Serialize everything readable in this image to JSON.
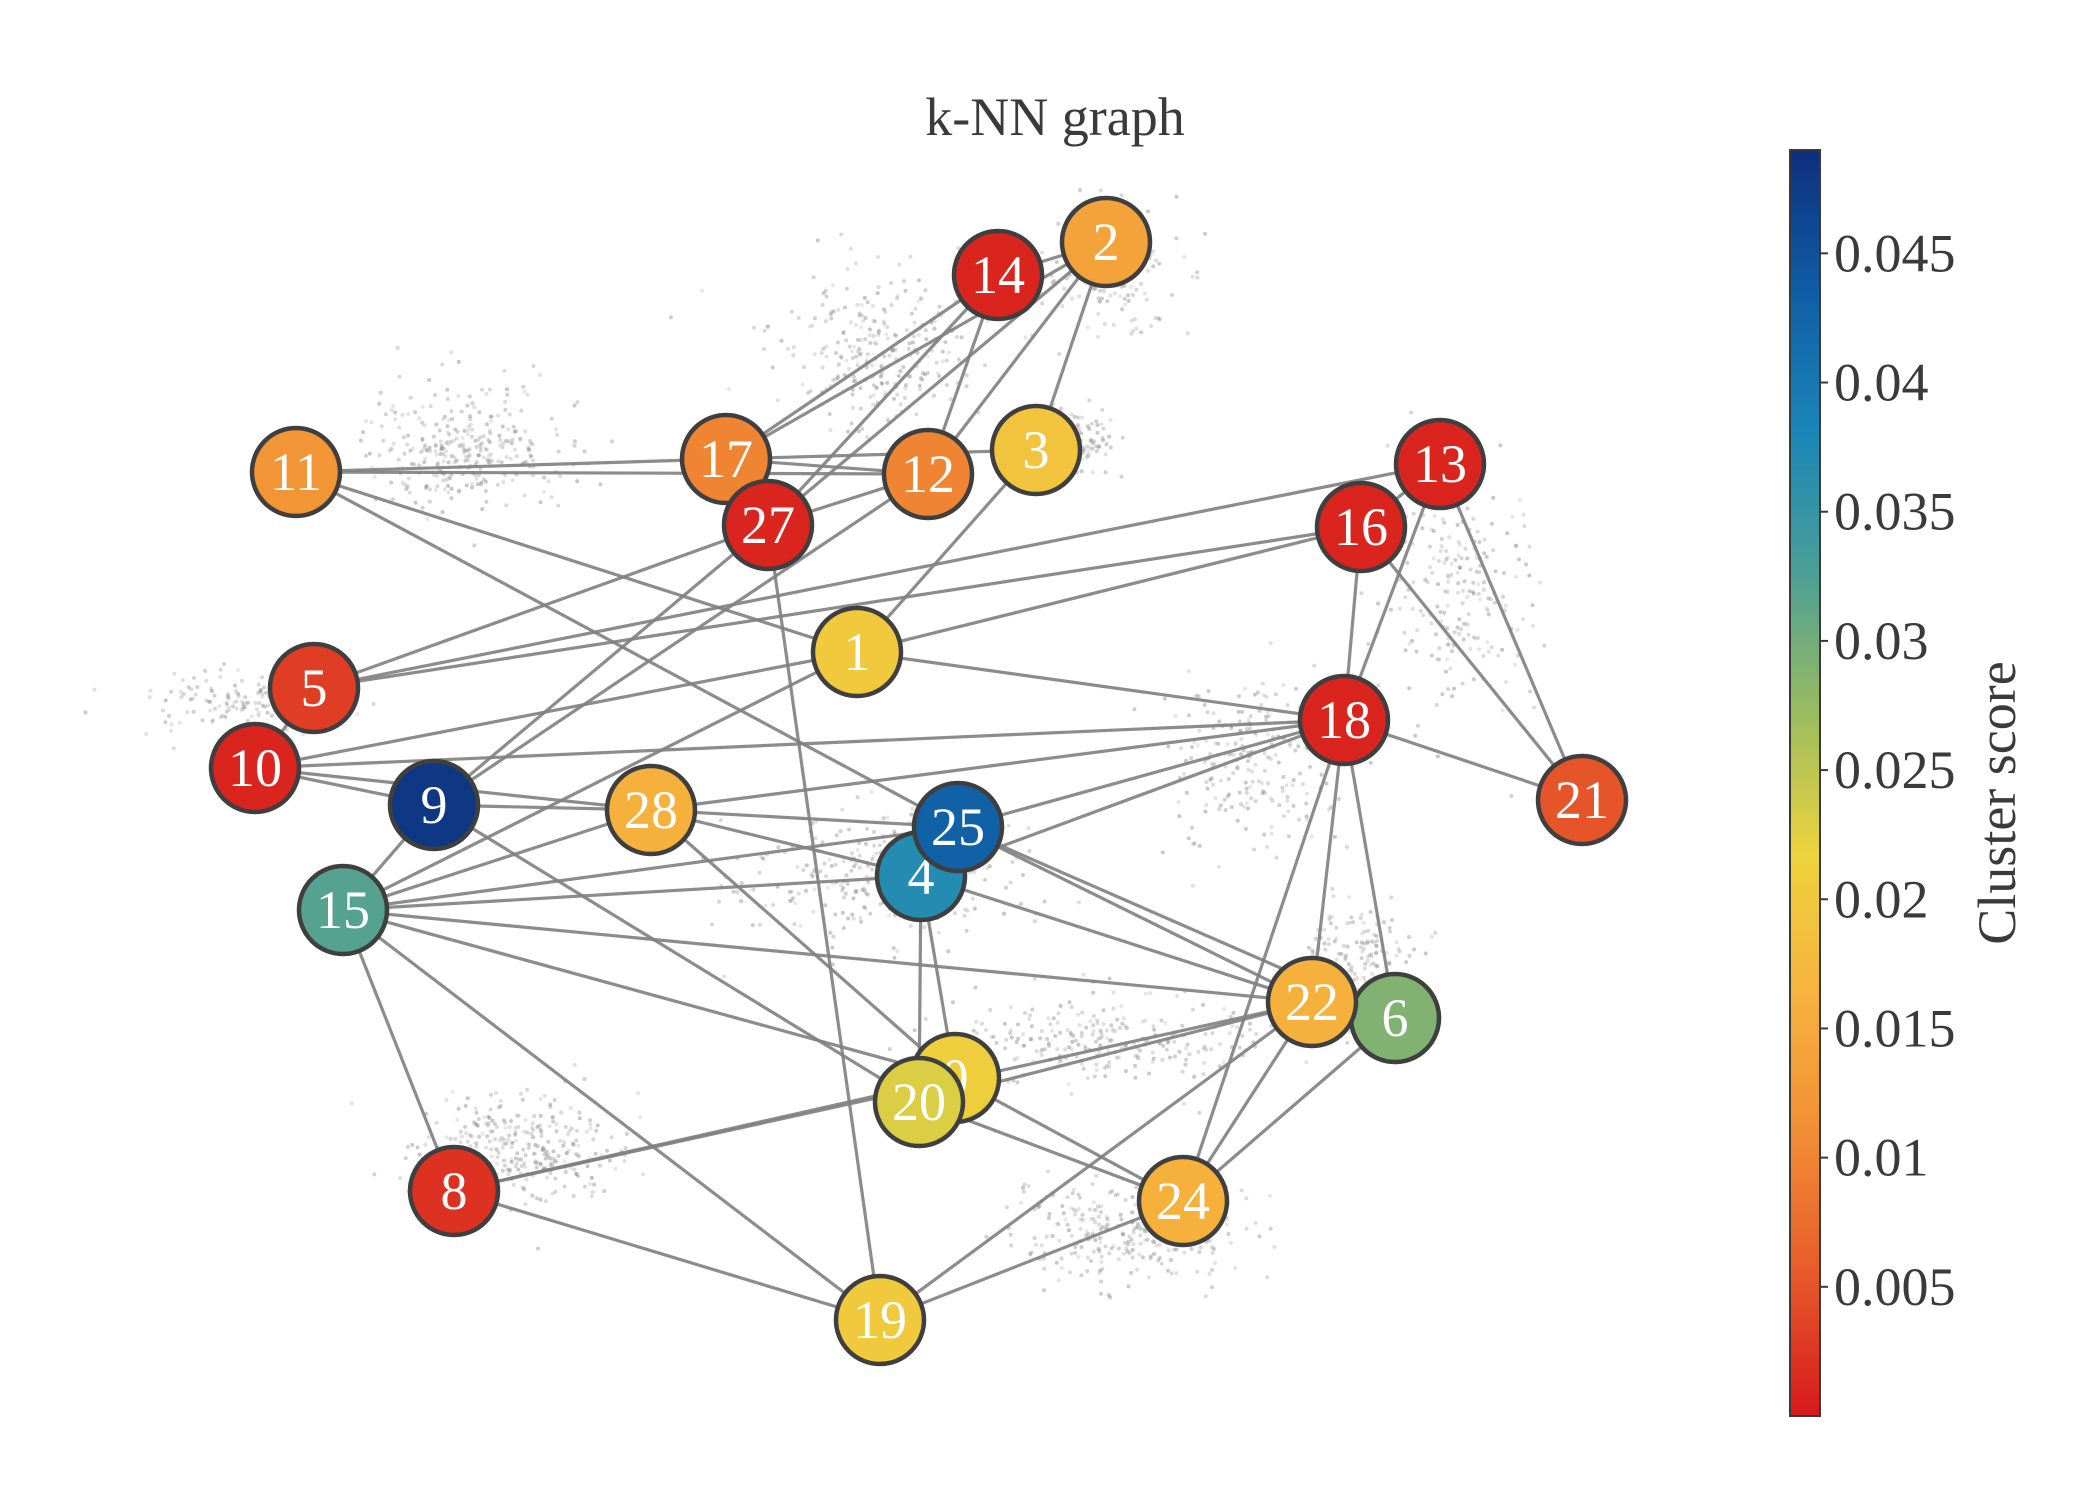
{
  "title": "k-NN graph",
  "colorbar": {
    "label": "Cluster score",
    "min": 0.0,
    "max": 0.049,
    "ticks": [
      "0.005",
      "0.01",
      "0.015",
      "0.02",
      "0.025",
      "0.03",
      "0.035",
      "0.04",
      "0.045"
    ],
    "colormap": [
      "#d7191c",
      "#e65a2a",
      "#f18d35",
      "#f6b33e",
      "#edd33c",
      "#9bbb60",
      "#4a9f96",
      "#1a86b8",
      "#105da5",
      "#0d2f7d"
    ]
  },
  "nodes": [
    {
      "id": "0",
      "score": 0.021
    },
    {
      "id": "1",
      "score": 0.02
    },
    {
      "id": "2",
      "score": 0.014
    },
    {
      "id": "3",
      "score": 0.019
    },
    {
      "id": "4",
      "score": 0.037
    },
    {
      "id": "5",
      "score": 0.003
    },
    {
      "id": "6",
      "score": 0.029
    },
    {
      "id": "8",
      "score": 0.002
    },
    {
      "id": "9",
      "score": 0.048
    },
    {
      "id": "10",
      "score": 0.001
    },
    {
      "id": "11",
      "score": 0.012
    },
    {
      "id": "12",
      "score": 0.01
    },
    {
      "id": "13",
      "score": 0.001
    },
    {
      "id": "14",
      "score": 0.001
    },
    {
      "id": "15",
      "score": 0.032
    },
    {
      "id": "16",
      "score": 0.001
    },
    {
      "id": "17",
      "score": 0.01
    },
    {
      "id": "18",
      "score": 0.001
    },
    {
      "id": "19",
      "score": 0.02
    },
    {
      "id": "20",
      "score": 0.023
    },
    {
      "id": "21",
      "score": 0.005
    },
    {
      "id": "22",
      "score": 0.016
    },
    {
      "id": "24",
      "score": 0.016
    },
    {
      "id": "25",
      "score": 0.043
    },
    {
      "id": "27",
      "score": 0.001
    },
    {
      "id": "28",
      "score": 0.016
    }
  ],
  "edges": [
    [
      "14",
      "2"
    ],
    [
      "14",
      "17"
    ],
    [
      "14",
      "12"
    ],
    [
      "14",
      "27"
    ],
    [
      "2",
      "17"
    ],
    [
      "2",
      "12"
    ],
    [
      "2",
      "3"
    ],
    [
      "2",
      "27"
    ],
    [
      "11",
      "17"
    ],
    [
      "11",
      "12"
    ],
    [
      "11",
      "1"
    ],
    [
      "11",
      "25"
    ],
    [
      "17",
      "12"
    ],
    [
      "17",
      "3"
    ],
    [
      "27",
      "12"
    ],
    [
      "27",
      "5"
    ],
    [
      "27",
      "9"
    ],
    [
      "27",
      "19"
    ],
    [
      "12",
      "9"
    ],
    [
      "3",
      "1"
    ],
    [
      "13",
      "16"
    ],
    [
      "13",
      "5"
    ],
    [
      "13",
      "18"
    ],
    [
      "13",
      "21"
    ],
    [
      "16",
      "5"
    ],
    [
      "16",
      "1"
    ],
    [
      "16",
      "18"
    ],
    [
      "16",
      "21"
    ],
    [
      "1",
      "10"
    ],
    [
      "1",
      "18"
    ],
    [
      "18",
      "10"
    ],
    [
      "18",
      "28"
    ],
    [
      "18",
      "25"
    ],
    [
      "18",
      "4"
    ],
    [
      "18",
      "21"
    ],
    [
      "18",
      "22"
    ],
    [
      "18",
      "6"
    ],
    [
      "18",
      "24"
    ],
    [
      "5",
      "10"
    ],
    [
      "10",
      "9"
    ],
    [
      "10",
      "28"
    ],
    [
      "9",
      "15"
    ],
    [
      "9",
      "28"
    ],
    [
      "9",
      "20"
    ],
    [
      "28",
      "15"
    ],
    [
      "28",
      "25"
    ],
    [
      "28",
      "4"
    ],
    [
      "28",
      "0"
    ],
    [
      "25",
      "15"
    ],
    [
      "25",
      "4"
    ],
    [
      "25",
      "22"
    ],
    [
      "25",
      "6"
    ],
    [
      "4",
      "15"
    ],
    [
      "4",
      "22"
    ],
    [
      "4",
      "0"
    ],
    [
      "4",
      "20"
    ],
    [
      "15",
      "22"
    ],
    [
      "15",
      "0"
    ],
    [
      "15",
      "8"
    ],
    [
      "15",
      "19"
    ],
    [
      "1",
      "15"
    ],
    [
      "22",
      "6"
    ],
    [
      "22",
      "8"
    ],
    [
      "22",
      "20"
    ],
    [
      "22",
      "24"
    ],
    [
      "22",
      "19"
    ],
    [
      "6",
      "24"
    ],
    [
      "0",
      "8"
    ],
    [
      "0",
      "24"
    ],
    [
      "20",
      "24"
    ],
    [
      "8",
      "19"
    ],
    [
      "24",
      "19"
    ]
  ]
}
